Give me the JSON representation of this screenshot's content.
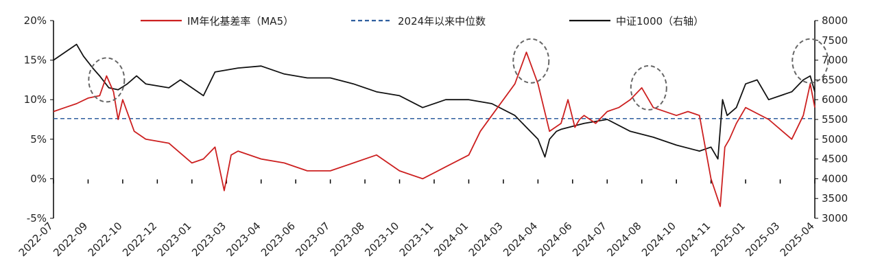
{
  "chart_data": {
    "type": "line",
    "legend": [
      {
        "name": "IM年化基差率（MA5）",
        "color": "#cc1f1f",
        "style": "solid"
      },
      {
        "name": "2024年以来中位数",
        "color": "#2e5e9e",
        "style": "dashed"
      },
      {
        "name": "中证1000（右轴）",
        "color": "#111111",
        "style": "solid"
      }
    ],
    "legend_placement": "top",
    "left_axis": {
      "ticks": [
        "20%",
        "15%",
        "10%",
        "5%",
        "0%",
        "-5%"
      ],
      "range": [
        -5,
        20
      ]
    },
    "right_axis": {
      "ticks": [
        "8000",
        "7500",
        "7000",
        "6500",
        "6000",
        "5500",
        "5000",
        "4500",
        "4000",
        "3500",
        "3000"
      ],
      "range": [
        3000,
        8000
      ]
    },
    "x_axis": {
      "ticks": [
        "2022-07",
        "2022-09",
        "2022-10",
        "2022-12",
        "2023-01",
        "2023-03",
        "2023-04",
        "2023-06",
        "2023-07",
        "2023-08",
        "2023-10",
        "2023-11",
        "2024-01",
        "2024-03",
        "2024-04",
        "2024-06",
        "2024-07",
        "2024-08",
        "2024-10",
        "2024-11",
        "2025-01",
        "2025-03",
        "2025-04"
      ],
      "range": [
        0,
        33
      ]
    },
    "grid": false,
    "median_value": 7.6,
    "series": [
      {
        "name": "IM年化基差率（MA5）",
        "axis": "left",
        "x": [
          0,
          0.5,
          1,
          1.5,
          2,
          2.3,
          2.6,
          2.8,
          3.0,
          3.5,
          4,
          5,
          6,
          6.5,
          7,
          7.4,
          7.7,
          8,
          9,
          10,
          11,
          12,
          13,
          14,
          15,
          16,
          17,
          18,
          18.5,
          19,
          20,
          20.5,
          21,
          21.5,
          22,
          22.3,
          22.6,
          22.8,
          23,
          23.5,
          24,
          24.5,
          25,
          25.5,
          26,
          27,
          27.5,
          28,
          28.5,
          28.9,
          29.1,
          29.3,
          29.6,
          30,
          31,
          32,
          32.5,
          32.8,
          33
        ],
        "values": [
          8.5,
          9.0,
          9.5,
          10.2,
          10.5,
          13.0,
          11.0,
          7.5,
          10.0,
          6.0,
          5.0,
          4.5,
          2.0,
          2.5,
          4.0,
          -1.5,
          3.0,
          3.5,
          2.5,
          2.0,
          1.0,
          1.0,
          2.0,
          3.0,
          1.0,
          0.0,
          1.5,
          3.0,
          6.0,
          8.0,
          12.0,
          16.0,
          12.0,
          6.0,
          7.0,
          10.0,
          6.5,
          7.5,
          8.0,
          7.0,
          8.5,
          9.0,
          10.0,
          11.5,
          9.0,
          8.0,
          8.5,
          8.0,
          0.0,
          -3.5,
          4.0,
          5.0,
          7.0,
          9.0,
          7.5,
          5.0,
          8.0,
          12.0,
          9.0
        ]
      },
      {
        "name": "中证1000（右轴）",
        "axis": "right",
        "x": [
          0,
          0.5,
          1,
          1.3,
          1.7,
          2.0,
          2.4,
          2.8,
          3.2,
          3.6,
          4,
          5,
          5.5,
          6,
          6.5,
          7,
          8,
          9,
          10,
          11,
          12,
          13,
          14,
          15,
          16,
          17,
          18,
          19,
          20,
          20.5,
          21,
          21.3,
          21.5,
          21.8,
          22,
          23,
          24,
          25,
          26,
          27,
          28,
          28.5,
          28.8,
          29,
          29.2,
          29.6,
          30,
          30.5,
          31,
          32,
          32.5,
          32.8,
          33
        ],
        "values": [
          7000,
          7200,
          7400,
          7100,
          6800,
          6600,
          6300,
          6250,
          6400,
          6600,
          6400,
          6300,
          6500,
          6300,
          6100,
          6700,
          6800,
          6850,
          6650,
          6550,
          6550,
          6400,
          6200,
          6100,
          5800,
          6000,
          6000,
          5900,
          5600,
          5300,
          5000,
          4550,
          5000,
          5200,
          5250,
          5400,
          5500,
          5200,
          5050,
          4850,
          4700,
          4800,
          4500,
          6000,
          5600,
          5800,
          6400,
          6500,
          6000,
          6200,
          6500,
          6600,
          6200
        ]
      },
      {
        "name": "2024年以来中位数",
        "axis": "left",
        "x": [
          0,
          33
        ],
        "values": [
          7.6,
          7.6
        ]
      }
    ],
    "annotations": [
      {
        "type": "dashed-circle",
        "x": 2.3,
        "y": 12.5
      },
      {
        "type": "dashed-circle",
        "x": 20.7,
        "y": 14.9
      },
      {
        "type": "dashed-circle",
        "x": 25.8,
        "y": 11.5
      },
      {
        "type": "dashed-circle",
        "x": 32.8,
        "y": 14.9
      }
    ]
  }
}
